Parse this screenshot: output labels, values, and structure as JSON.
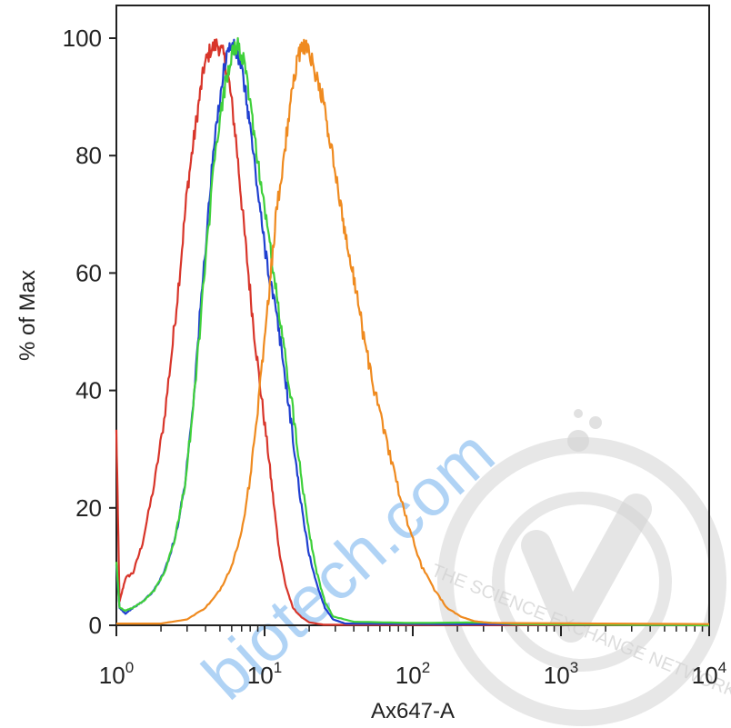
{
  "watermark": {
    "url_text": "biotech.com",
    "url_color": "#a8cff5",
    "seal_text": "THE SCIENCE EXCHANGE NETWORK",
    "seal_color": "#d4d4d4"
  },
  "chart_data": {
    "type": "line",
    "xlabel": "Ax647-A",
    "ylabel": "% of Max",
    "xscale": "log",
    "xlim": [
      1,
      10000
    ],
    "ylim": [
      0,
      100
    ],
    "x_tick_labels": [
      {
        "base": "10",
        "exp": "0"
      },
      {
        "base": "10",
        "exp": "1"
      },
      {
        "base": "10",
        "exp": "2"
      },
      {
        "base": "10",
        "exp": "3"
      },
      {
        "base": "10",
        "exp": "4"
      }
    ],
    "y_ticks": [
      "0",
      "20",
      "40",
      "60",
      "80",
      "100"
    ],
    "grid": false,
    "legend": "none",
    "series": [
      {
        "color": "#d8352a",
        "points": [
          [
            1,
            33
          ],
          [
            1.05,
            4
          ],
          [
            1.15,
            8
          ],
          [
            1.3,
            9
          ],
          [
            1.5,
            14
          ],
          [
            1.8,
            24
          ],
          [
            2.1,
            35
          ],
          [
            2.4,
            48
          ],
          [
            2.7,
            61
          ],
          [
            3.0,
            74
          ],
          [
            3.3,
            82
          ],
          [
            3.6,
            89
          ],
          [
            3.9,
            95
          ],
          [
            4.3,
            98
          ],
          [
            4.8,
            99
          ],
          [
            5.3,
            97
          ],
          [
            5.8,
            92
          ],
          [
            6.4,
            83
          ],
          [
            7.0,
            72
          ],
          [
            7.7,
            61
          ],
          [
            8.5,
            50
          ],
          [
            9.4,
            40
          ],
          [
            10.5,
            30
          ],
          [
            11.5,
            21
          ],
          [
            12.5,
            13
          ],
          [
            13.8,
            7
          ],
          [
            15.5,
            3
          ],
          [
            17.5,
            1.5
          ],
          [
            20,
            0.5
          ],
          [
            25,
            0.1
          ],
          [
            10000,
            0
          ]
        ]
      },
      {
        "color": "#1f3fd0",
        "points": [
          [
            1,
            10
          ],
          [
            1.05,
            3
          ],
          [
            1.15,
            2
          ],
          [
            1.3,
            3
          ],
          [
            1.5,
            4
          ],
          [
            1.8,
            6
          ],
          [
            2.1,
            9
          ],
          [
            2.5,
            15
          ],
          [
            2.9,
            24
          ],
          [
            3.3,
            38
          ],
          [
            3.7,
            54
          ],
          [
            4.1,
            68
          ],
          [
            4.5,
            80
          ],
          [
            5.0,
            90
          ],
          [
            5.5,
            97
          ],
          [
            6.0,
            99
          ],
          [
            6.6,
            97
          ],
          [
            7.2,
            93
          ],
          [
            7.9,
            86
          ],
          [
            8.7,
            77
          ],
          [
            9.6,
            68
          ],
          [
            10.7,
            60
          ],
          [
            11.8,
            54
          ],
          [
            13.0,
            47
          ],
          [
            14.5,
            38
          ],
          [
            16.2,
            28
          ],
          [
            18.0,
            19
          ],
          [
            20,
            12
          ],
          [
            22.5,
            7
          ],
          [
            25.5,
            3
          ],
          [
            29,
            1
          ],
          [
            35,
            0.3
          ],
          [
            10000,
            0
          ]
        ]
      },
      {
        "color": "#3fd03a",
        "points": [
          [
            1,
            11
          ],
          [
            1.05,
            3
          ],
          [
            1.15,
            2.5
          ],
          [
            1.3,
            3
          ],
          [
            1.5,
            4
          ],
          [
            1.8,
            6
          ],
          [
            2.1,
            9
          ],
          [
            2.5,
            15
          ],
          [
            2.9,
            24
          ],
          [
            3.3,
            37
          ],
          [
            3.7,
            52
          ],
          [
            4.1,
            65
          ],
          [
            4.5,
            77
          ],
          [
            5.0,
            86
          ],
          [
            5.5,
            93
          ],
          [
            6.0,
            97
          ],
          [
            6.6,
            99
          ],
          [
            7.2,
            96
          ],
          [
            7.9,
            90
          ],
          [
            8.7,
            82
          ],
          [
            9.6,
            74
          ],
          [
            10.7,
            66
          ],
          [
            11.8,
            58
          ],
          [
            13.0,
            50
          ],
          [
            14.5,
            42
          ],
          [
            16.2,
            33
          ],
          [
            18.0,
            24
          ],
          [
            20,
            16
          ],
          [
            22.5,
            9
          ],
          [
            25.5,
            4
          ],
          [
            29,
            1.5
          ],
          [
            40,
            0.6
          ],
          [
            100,
            0.4
          ],
          [
            300,
            0.5
          ],
          [
            500,
            0.2
          ],
          [
            10000,
            0
          ]
        ]
      },
      {
        "color": "#ef8a1f",
        "points": [
          [
            1,
            0.3
          ],
          [
            2.0,
            0.3
          ],
          [
            3.0,
            1
          ],
          [
            4.0,
            3
          ],
          [
            5.0,
            6
          ],
          [
            6.0,
            10
          ],
          [
            7.0,
            16
          ],
          [
            8.0,
            25
          ],
          [
            9.0,
            37
          ],
          [
            10.0,
            49
          ],
          [
            11.0,
            60
          ],
          [
            12.0,
            70
          ],
          [
            13.5,
            80
          ],
          [
            15.0,
            89
          ],
          [
            16.5,
            96
          ],
          [
            18.0,
            99
          ],
          [
            19.8,
            98
          ],
          [
            22.0,
            94
          ],
          [
            24.5,
            90
          ],
          [
            27.0,
            84
          ],
          [
            30.0,
            77
          ],
          [
            33.5,
            70
          ],
          [
            37.0,
            63
          ],
          [
            41.0,
            58
          ],
          [
            46.0,
            50
          ],
          [
            52.0,
            43
          ],
          [
            60.0,
            36
          ],
          [
            70.0,
            29
          ],
          [
            82.0,
            22
          ],
          [
            96.0,
            16
          ],
          [
            115,
            10
          ],
          [
            140,
            6
          ],
          [
            170,
            3
          ],
          [
            210,
            1.5
          ],
          [
            260,
            0.7
          ],
          [
            330,
            0.4
          ],
          [
            10000,
            0.2
          ]
        ]
      }
    ]
  }
}
